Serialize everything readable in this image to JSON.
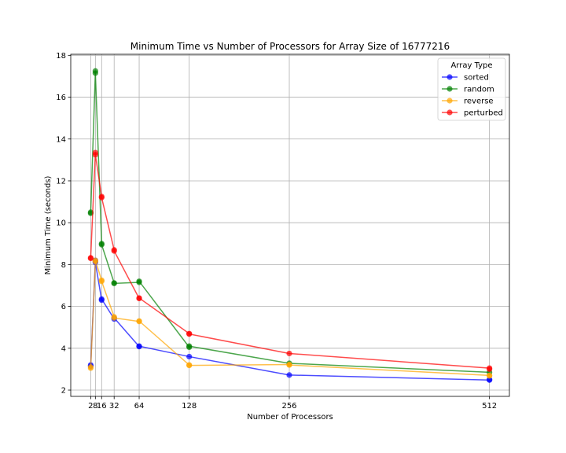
{
  "chart_data": {
    "type": "line",
    "title": "Minimum Time vs Number of Processors for Array Size of 16777216",
    "xlabel": "Number of Processors",
    "ylabel": "Minimum Time (seconds)",
    "xlim": [
      -23.5,
      537.5
    ],
    "ylim": [
      1.7,
      18.05
    ],
    "xticks": [
      2,
      8,
      16,
      32,
      64,
      128,
      256,
      512
    ],
    "xtick_labels": [
      "2",
      "8",
      "16",
      "32",
      "64",
      "128",
      "256",
      "512"
    ],
    "yticks": [
      2,
      4,
      6,
      8,
      10,
      12,
      14,
      16,
      18
    ],
    "ytick_labels": [
      "2",
      "4",
      "6",
      "8",
      "10",
      "12",
      "14",
      "16",
      "18"
    ],
    "grid": true,
    "legend_title": "Array Type",
    "legend_position": "upper right",
    "x": [
      2,
      8,
      16,
      32,
      64,
      128,
      256,
      512
    ],
    "series": [
      {
        "name": "sorted",
        "color": "#0000ff",
        "points": [
          [
            2,
            3.2
          ],
          [
            2,
            3.15
          ],
          [
            8,
            8.2
          ],
          [
            8,
            8.1
          ],
          [
            16,
            6.3
          ],
          [
            16,
            6.35
          ],
          [
            32,
            5.4
          ],
          [
            32,
            5.45
          ],
          [
            64,
            4.08
          ],
          [
            64,
            4.1
          ],
          [
            128,
            3.6
          ],
          [
            256,
            2.72
          ],
          [
            512,
            2.48
          ],
          [
            512,
            2.5
          ]
        ]
      },
      {
        "name": "random",
        "color": "#008000",
        "points": [
          [
            2,
            10.5
          ],
          [
            2,
            10.45
          ],
          [
            8,
            17.25
          ],
          [
            8,
            17.15
          ],
          [
            16,
            9.0
          ],
          [
            16,
            8.95
          ],
          [
            32,
            7.12
          ],
          [
            32,
            7.1
          ],
          [
            64,
            7.15
          ],
          [
            64,
            7.2
          ],
          [
            128,
            4.05
          ],
          [
            128,
            4.1
          ],
          [
            256,
            3.28
          ],
          [
            512,
            2.85
          ]
        ]
      },
      {
        "name": "reverse",
        "color": "#ffa500",
        "points": [
          [
            2,
            3.1
          ],
          [
            2,
            3.05
          ],
          [
            8,
            8.15
          ],
          [
            8,
            8.2
          ],
          [
            16,
            7.25
          ],
          [
            16,
            7.2
          ],
          [
            32,
            5.5
          ],
          [
            32,
            5.45
          ],
          [
            64,
            5.28
          ],
          [
            64,
            5.3
          ],
          [
            128,
            3.2
          ],
          [
            128,
            3.18
          ],
          [
            256,
            3.22
          ],
          [
            256,
            3.2
          ],
          [
            512,
            2.7
          ],
          [
            512,
            2.68
          ]
        ]
      },
      {
        "name": "perturbed",
        "color": "#ff0000",
        "points": [
          [
            2,
            8.3
          ],
          [
            2,
            8.32
          ],
          [
            8,
            13.35
          ],
          [
            8,
            13.25
          ],
          [
            16,
            11.25
          ],
          [
            16,
            11.2
          ],
          [
            32,
            8.7
          ],
          [
            32,
            8.65
          ],
          [
            64,
            6.38
          ],
          [
            64,
            6.4
          ],
          [
            128,
            4.7
          ],
          [
            128,
            4.68
          ],
          [
            256,
            3.75
          ],
          [
            512,
            3.05
          ],
          [
            512,
            3.0
          ]
        ]
      }
    ]
  }
}
